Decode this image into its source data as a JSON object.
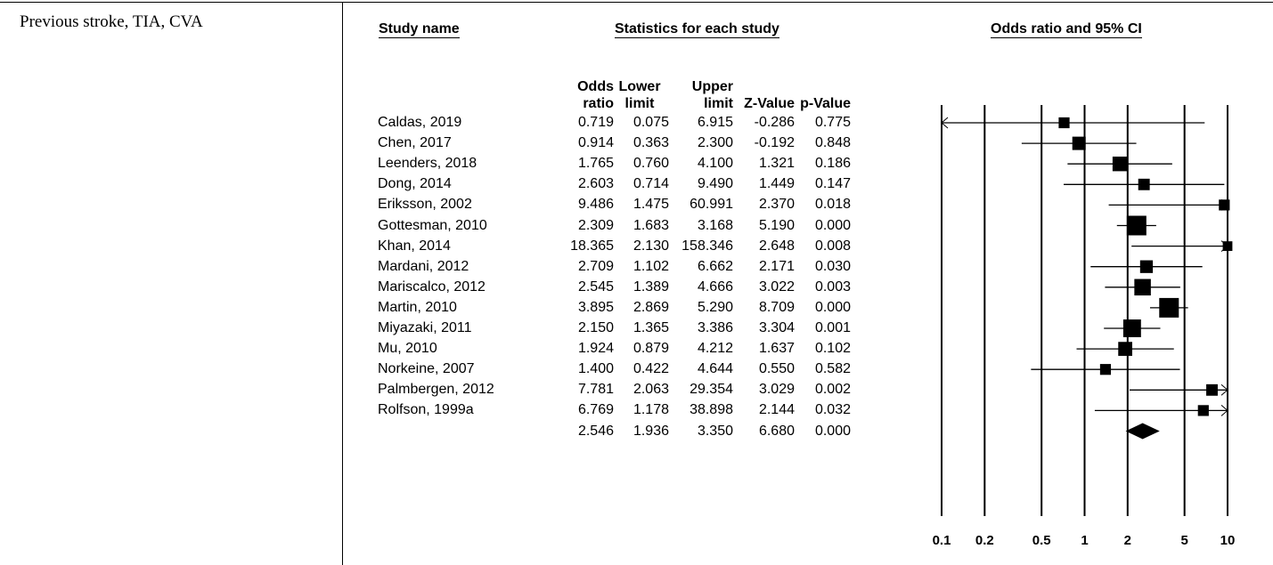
{
  "section_label": "Previous stroke, TIA, CVA",
  "headers": {
    "study_name": "Study name",
    "statistics": "Statistics for each study",
    "plot": "Odds ratio and 95% CI"
  },
  "columns": [
    {
      "line1": "Odds",
      "line2": "ratio"
    },
    {
      "line1": "Lower",
      "line2": "limit"
    },
    {
      "line1": "Upper",
      "line2": "limit"
    },
    {
      "line1": "",
      "line2": "Z-Value"
    },
    {
      "line1": "",
      "line2": "p-Value"
    }
  ],
  "rows": [
    {
      "study": "Caldas, 2019",
      "or": "0.719",
      "lower": "0.075",
      "upper": "6.915",
      "z": "-0.286",
      "p": "0.775"
    },
    {
      "study": "Chen, 2017",
      "or": "0.914",
      "lower": "0.363",
      "upper": "2.300",
      "z": "-0.192",
      "p": "0.848"
    },
    {
      "study": "Leenders, 2018",
      "or": "1.765",
      "lower": "0.760",
      "upper": "4.100",
      "z": "1.321",
      "p": "0.186"
    },
    {
      "study": "Dong, 2014",
      "or": "2.603",
      "lower": "0.714",
      "upper": "9.490",
      "z": "1.449",
      "p": "0.147"
    },
    {
      "study": "Eriksson, 2002",
      "or": "9.486",
      "lower": "1.475",
      "upper": "60.991",
      "z": "2.370",
      "p": "0.018"
    },
    {
      "study": "Gottesman, 2010",
      "or": "2.309",
      "lower": "1.683",
      "upper": "3.168",
      "z": "5.190",
      "p": "0.000"
    },
    {
      "study": "Khan, 2014",
      "or": "18.365",
      "lower": "2.130",
      "upper": "158.346",
      "z": "2.648",
      "p": "0.008"
    },
    {
      "study": "Mardani, 2012",
      "or": "2.709",
      "lower": "1.102",
      "upper": "6.662",
      "z": "2.171",
      "p": "0.030"
    },
    {
      "study": "Mariscalco, 2012",
      "or": "2.545",
      "lower": "1.389",
      "upper": "4.666",
      "z": "3.022",
      "p": "0.003"
    },
    {
      "study": "Martin, 2010",
      "or": "3.895",
      "lower": "2.869",
      "upper": "5.290",
      "z": "8.709",
      "p": "0.000"
    },
    {
      "study": "Miyazaki, 2011",
      "or": "2.150",
      "lower": "1.365",
      "upper": "3.386",
      "z": "3.304",
      "p": "0.001"
    },
    {
      "study": "Mu, 2010",
      "or": "1.924",
      "lower": "0.879",
      "upper": "4.212",
      "z": "1.637",
      "p": "0.102"
    },
    {
      "study": "Norkeine, 2007",
      "or": "1.400",
      "lower": "0.422",
      "upper": "4.644",
      "z": "0.550",
      "p": "0.582"
    },
    {
      "study": "Palmbergen, 2012",
      "or": "7.781",
      "lower": "2.063",
      "upper": "29.354",
      "z": "3.029",
      "p": "0.002"
    },
    {
      "study": "Rolfson, 1999a",
      "or": "6.769",
      "lower": "1.178",
      "upper": "38.898",
      "z": "2.144",
      "p": "0.032"
    }
  ],
  "summary": {
    "study": "",
    "or": "2.546",
    "lower": "1.936",
    "upper": "3.350",
    "z": "6.680",
    "p": "0.000"
  },
  "chart_data": {
    "type": "forest",
    "scale": "log",
    "xlim": [
      0.1,
      10
    ],
    "ticks": [
      0.1,
      0.2,
      0.5,
      1,
      2,
      5,
      10
    ],
    "tick_labels": [
      "0.1",
      "0.2",
      "0.5",
      "1",
      "2",
      "5",
      "10"
    ],
    "studies": [
      {
        "or": 0.719,
        "lower": 0.075,
        "upper": 6.915,
        "weight": 0.3
      },
      {
        "or": 0.914,
        "lower": 0.363,
        "upper": 2.3,
        "weight": 0.5
      },
      {
        "or": 1.765,
        "lower": 0.76,
        "upper": 4.1,
        "weight": 0.6
      },
      {
        "or": 2.603,
        "lower": 0.714,
        "upper": 9.49,
        "weight": 0.35
      },
      {
        "or": 9.486,
        "lower": 1.475,
        "upper": 60.991,
        "weight": 0.3
      },
      {
        "or": 2.309,
        "lower": 1.683,
        "upper": 3.168,
        "weight": 1.0
      },
      {
        "or": 18.365,
        "lower": 2.13,
        "upper": 158.346,
        "weight": 0.2
      },
      {
        "or": 2.709,
        "lower": 1.102,
        "upper": 6.662,
        "weight": 0.45
      },
      {
        "or": 2.545,
        "lower": 1.389,
        "upper": 4.666,
        "weight": 0.75
      },
      {
        "or": 3.895,
        "lower": 2.869,
        "upper": 5.29,
        "weight": 1.0
      },
      {
        "or": 2.15,
        "lower": 1.365,
        "upper": 3.386,
        "weight": 0.85
      },
      {
        "or": 1.924,
        "lower": 0.879,
        "upper": 4.212,
        "weight": 0.55
      },
      {
        "or": 1.4,
        "lower": 0.422,
        "upper": 4.644,
        "weight": 0.3
      },
      {
        "or": 7.781,
        "lower": 2.063,
        "upper": 29.354,
        "weight": 0.35
      },
      {
        "or": 6.769,
        "lower": 1.178,
        "upper": 38.898,
        "weight": 0.3
      }
    ],
    "summary": {
      "or": 2.546,
      "lower": 1.936,
      "upper": 3.35
    }
  }
}
